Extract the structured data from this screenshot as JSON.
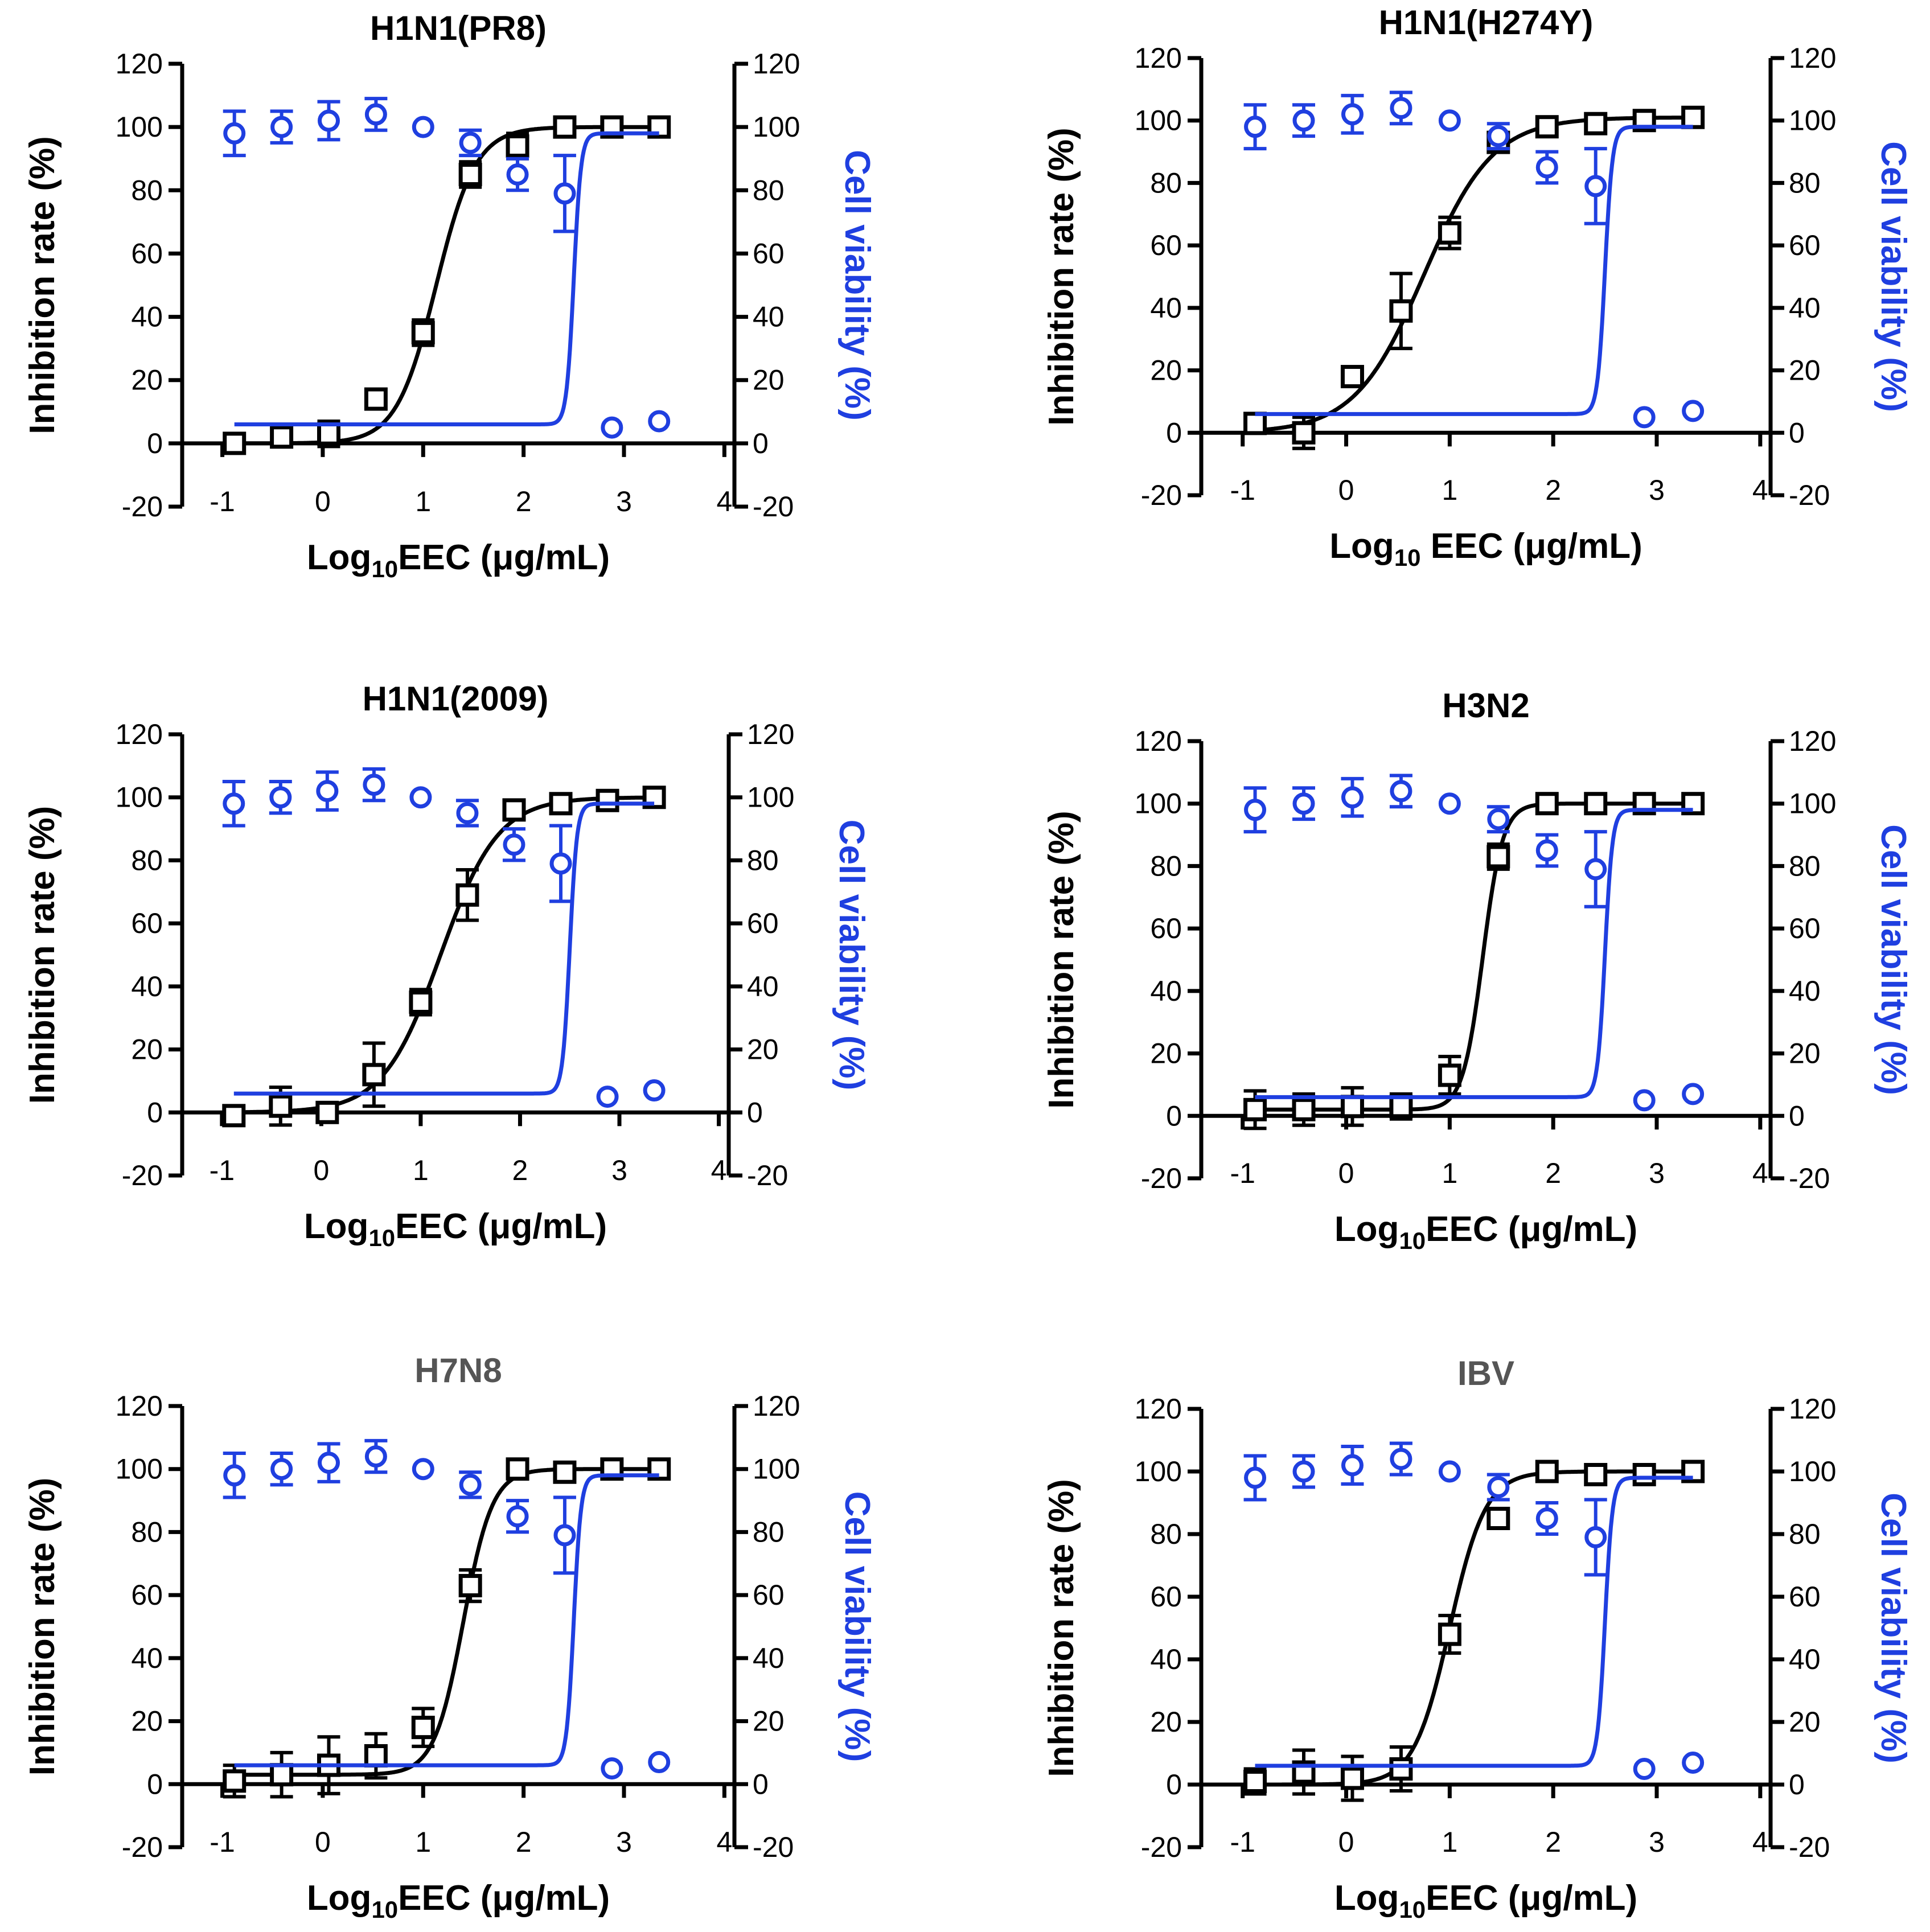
{
  "figure": {
    "black_color": "#000000",
    "blue_color": "#1f3fe0",
    "title_gray_color": "#555555"
  },
  "chart_data": [
    {
      "type": "line",
      "title": "H1N1(PR8)",
      "title_gray": false,
      "xlabel_main": "Log",
      "xlabel_sub": "10",
      "xlabel_rest": "EEC (μg/mL)",
      "ylabel_left": "Inhibition rate (%)",
      "ylabel_right": "Cell viability (%)",
      "xlim": [
        -1.4,
        4.1
      ],
      "ylim": [
        -20,
        120
      ],
      "xticks": [
        "-1",
        "0",
        "1",
        "2",
        "3",
        "4"
      ],
      "yticks": [
        "-20",
        "0",
        "20",
        "40",
        "60",
        "80",
        "100",
        "120"
      ],
      "yticks_right": [
        "-20",
        "0",
        "20",
        "40",
        "60",
        "80",
        "100",
        "120"
      ],
      "series": [
        {
          "name": "Inhibition rate",
          "marker": "square",
          "x": [
            -0.88,
            -0.41,
            0.06,
            0.53,
            1.0,
            1.47,
            1.94,
            2.41,
            2.88,
            3.35
          ],
          "y": [
            0,
            2,
            3,
            14,
            35,
            85,
            94,
            100,
            100,
            100
          ],
          "err": [
            1,
            3,
            4,
            3,
            4,
            4,
            4,
            1,
            1,
            1
          ],
          "fit": {
            "bottom": 0,
            "top": 100,
            "logec50": 1.13,
            "hill": 2.2
          }
        },
        {
          "name": "Cell viability",
          "marker": "circle",
          "x": [
            -0.88,
            -0.41,
            0.06,
            0.53,
            1.0,
            1.47,
            1.94,
            2.41,
            2.88,
            3.35
          ],
          "y": [
            98,
            100,
            102,
            104,
            100,
            95,
            85,
            79,
            5,
            7
          ],
          "err": [
            7,
            5,
            6,
            5,
            1,
            4,
            5,
            12,
            1,
            1
          ],
          "fit": {
            "bottom": 6,
            "top": 98,
            "logec50": 2.5,
            "hill": 12
          }
        }
      ]
    },
    {
      "type": "line",
      "title": "H1N1(H274Y)",
      "title_gray": false,
      "xlabel_main": "Log",
      "xlabel_sub": "10",
      "xlabel_rest": " EEC (μg/mL)",
      "ylabel_left": "Inhibition rate (%)",
      "ylabel_right": "Cell viability (%)",
      "xlim": [
        -1.4,
        4.1
      ],
      "ylim": [
        -20,
        120
      ],
      "xticks": [
        "-1",
        "0",
        "1",
        "2",
        "3",
        "4"
      ],
      "yticks": [
        "-20",
        "0",
        "20",
        "40",
        "60",
        "80",
        "100",
        "120"
      ],
      "yticks_right": [
        "-20",
        "0",
        "20",
        "40",
        "60",
        "80",
        "100",
        "120"
      ],
      "series": [
        {
          "name": "Inhibition rate",
          "marker": "square",
          "x": [
            -0.88,
            -0.41,
            0.06,
            0.53,
            1.0,
            1.47,
            1.94,
            2.41,
            2.88,
            3.35
          ],
          "y": [
            3,
            0,
            18,
            39,
            64,
            93,
            98,
            99,
            100,
            101
          ],
          "err": [
            2,
            5,
            3,
            12,
            5,
            3,
            1,
            1,
            1,
            1
          ],
          "fit": {
            "bottom": 0,
            "top": 101,
            "logec50": 0.75,
            "hill": 1.3
          }
        },
        {
          "name": "Cell viability",
          "marker": "circle",
          "x": [
            -0.88,
            -0.41,
            0.06,
            0.53,
            1.0,
            1.47,
            1.94,
            2.41,
            2.88,
            3.35
          ],
          "y": [
            98,
            100,
            102,
            104,
            100,
            95,
            85,
            79,
            5,
            7
          ],
          "err": [
            7,
            5,
            6,
            5,
            1,
            4,
            5,
            12,
            1,
            1
          ],
          "fit": {
            "bottom": 6,
            "top": 98,
            "logec50": 2.5,
            "hill": 12
          }
        }
      ]
    },
    {
      "type": "line",
      "title": "H1N1(2009)",
      "title_gray": false,
      "xlabel_main": "Log",
      "xlabel_sub": "10",
      "xlabel_rest": "EEC (μg/mL)",
      "ylabel_left": "Inhibition rate (%)",
      "ylabel_right": "Cell viability (%)",
      "xlim": [
        -1.4,
        4.1
      ],
      "ylim": [
        -20,
        120
      ],
      "xticks": [
        "-1",
        "0",
        "1",
        "2",
        "3",
        "4"
      ],
      "yticks": [
        "-20",
        "0",
        "20",
        "40",
        "60",
        "80",
        "100",
        "120"
      ],
      "yticks_right": [
        "-20",
        "0",
        "20",
        "40",
        "60",
        "80",
        "100",
        "120"
      ],
      "series": [
        {
          "name": "Inhibition rate",
          "marker": "square",
          "x": [
            -0.88,
            -0.41,
            0.06,
            0.53,
            1.0,
            1.47,
            1.94,
            2.41,
            2.88,
            3.35
          ],
          "y": [
            -1,
            2,
            0,
            12,
            35,
            69,
            96,
            98,
            99,
            100
          ],
          "err": [
            2,
            6,
            2,
            10,
            4,
            8,
            2,
            1,
            1,
            1
          ],
          "fit": {
            "bottom": 0,
            "top": 100,
            "logec50": 1.2,
            "hill": 1.5
          }
        },
        {
          "name": "Cell viability",
          "marker": "circle",
          "x": [
            -0.88,
            -0.41,
            0.06,
            0.53,
            1.0,
            1.47,
            1.94,
            2.41,
            2.88,
            3.35
          ],
          "y": [
            98,
            100,
            102,
            104,
            100,
            95,
            85,
            79,
            5,
            7
          ],
          "err": [
            7,
            5,
            6,
            5,
            1,
            4,
            5,
            12,
            1,
            1
          ],
          "fit": {
            "bottom": 6,
            "top": 98,
            "logec50": 2.5,
            "hill": 12
          }
        }
      ]
    },
    {
      "type": "line",
      "title": "H3N2",
      "title_gray": false,
      "xlabel_main": "Log",
      "xlabel_sub": "10",
      "xlabel_rest": "EEC (μg/mL)",
      "ylabel_left": "Inhibition rate (%)",
      "ylabel_right": "Cell viability (%)",
      "xlim": [
        -1.4,
        4.1
      ],
      "ylim": [
        -20,
        120
      ],
      "xticks": [
        "-1",
        "0",
        "1",
        "2",
        "3",
        "4"
      ],
      "yticks": [
        "-20",
        "0",
        "20",
        "40",
        "60",
        "80",
        "100",
        "120"
      ],
      "yticks_right": [
        "-20",
        "0",
        "20",
        "40",
        "60",
        "80",
        "100",
        "120"
      ],
      "series": [
        {
          "name": "Inhibition rate",
          "marker": "square",
          "x": [
            -0.88,
            -0.41,
            0.06,
            0.53,
            1.0,
            1.47,
            1.94,
            2.41,
            2.88,
            3.35
          ],
          "y": [
            2,
            2,
            3,
            3,
            13,
            83,
            100,
            100,
            100,
            100
          ],
          "err": [
            6,
            5,
            6,
            4,
            6,
            4,
            1,
            1,
            1,
            1
          ],
          "fit": {
            "bottom": 2,
            "top": 100,
            "logec50": 1.32,
            "hill": 4.5
          }
        },
        {
          "name": "Cell viability",
          "marker": "circle",
          "x": [
            -0.88,
            -0.41,
            0.06,
            0.53,
            1.0,
            1.47,
            1.94,
            2.41,
            2.88,
            3.35
          ],
          "y": [
            98,
            100,
            102,
            104,
            100,
            95,
            85,
            79,
            5,
            7
          ],
          "err": [
            7,
            5,
            6,
            5,
            1,
            4,
            5,
            12,
            1,
            1
          ],
          "fit": {
            "bottom": 6,
            "top": 98,
            "logec50": 2.5,
            "hill": 12
          }
        }
      ]
    },
    {
      "type": "line",
      "title": "H7N8",
      "title_gray": true,
      "xlabel_main": "Log",
      "xlabel_sub": "10",
      "xlabel_rest": "EEC (μg/mL)",
      "ylabel_left": "Inhibition rate (%)",
      "ylabel_right": "Cell viability (%)",
      "xlim": [
        -1.4,
        4.1
      ],
      "ylim": [
        -20,
        120
      ],
      "xticks": [
        "-1",
        "0",
        "1",
        "2",
        "3",
        "4"
      ],
      "yticks": [
        "-20",
        "0",
        "20",
        "40",
        "60",
        "80",
        "100",
        "120"
      ],
      "yticks_right": [
        "-20",
        "0",
        "20",
        "40",
        "60",
        "80",
        "100",
        "120"
      ],
      "series": [
        {
          "name": "Inhibition rate",
          "marker": "square",
          "x": [
            -0.88,
            -0.41,
            0.06,
            0.53,
            1.0,
            1.47,
            1.94,
            2.41,
            2.88,
            3.35
          ],
          "y": [
            1,
            3,
            6,
            9,
            18,
            63,
            100,
            99,
            100,
            100
          ],
          "err": [
            5,
            7,
            9,
            7,
            6,
            5,
            1,
            1,
            1,
            1
          ],
          "fit": {
            "bottom": 3,
            "top": 100,
            "logec50": 1.4,
            "hill": 3
          }
        },
        {
          "name": "Cell viability",
          "marker": "circle",
          "x": [
            -0.88,
            -0.41,
            0.06,
            0.53,
            1.0,
            1.47,
            1.94,
            2.41,
            2.88,
            3.35
          ],
          "y": [
            98,
            100,
            102,
            104,
            100,
            95,
            85,
            79,
            5,
            7
          ],
          "err": [
            7,
            5,
            6,
            5,
            1,
            4,
            5,
            12,
            1,
            1
          ],
          "fit": {
            "bottom": 6,
            "top": 98,
            "logec50": 2.5,
            "hill": 12
          }
        }
      ]
    },
    {
      "type": "line",
      "title": "IBV",
      "title_gray": true,
      "xlabel_main": "Log",
      "xlabel_sub": "10",
      "xlabel_rest": "EEC (μg/mL)",
      "ylabel_left": "Inhibition rate (%)",
      "ylabel_right": "Cell viability (%)",
      "xlim": [
        -1.4,
        4.1
      ],
      "ylim": [
        -20,
        120
      ],
      "xticks": [
        "-1",
        "0",
        "1",
        "2",
        "3",
        "4"
      ],
      "yticks": [
        "-20",
        "0",
        "20",
        "40",
        "60",
        "80",
        "100",
        "120"
      ],
      "yticks_right": [
        "-20",
        "0",
        "20",
        "40",
        "60",
        "80",
        "100",
        "120"
      ],
      "series": [
        {
          "name": "Inhibition rate",
          "marker": "square",
          "x": [
            -0.88,
            -0.41,
            0.06,
            0.53,
            1.0,
            1.47,
            1.94,
            2.41,
            2.88,
            3.35
          ],
          "y": [
            1,
            4,
            2,
            5,
            48,
            85,
            100,
            99,
            99,
            100
          ],
          "err": [
            4,
            7,
            7,
            7,
            6,
            2,
            1,
            1,
            1,
            1
          ],
          "fit": {
            "bottom": 0,
            "top": 100,
            "logec50": 1.0,
            "hill": 2.5
          }
        },
        {
          "name": "Cell viability",
          "marker": "circle",
          "x": [
            -0.88,
            -0.41,
            0.06,
            0.53,
            1.0,
            1.47,
            1.94,
            2.41,
            2.88,
            3.35
          ],
          "y": [
            98,
            100,
            102,
            104,
            100,
            95,
            85,
            79,
            5,
            7
          ],
          "err": [
            7,
            5,
            6,
            5,
            1,
            4,
            5,
            12,
            1,
            1
          ],
          "fit": {
            "bottom": 6,
            "top": 98,
            "logec50": 2.5,
            "hill": 12
          }
        }
      ]
    }
  ]
}
